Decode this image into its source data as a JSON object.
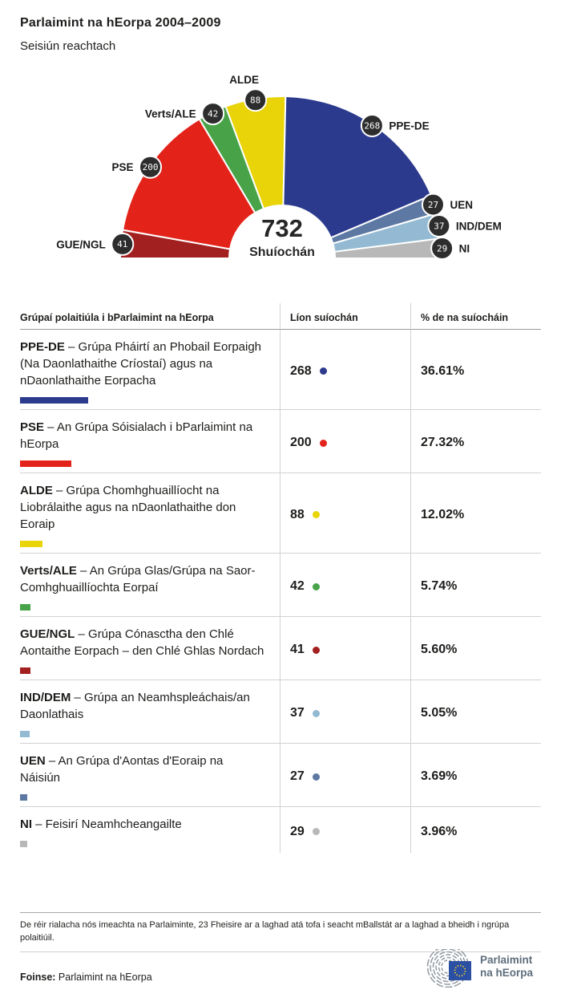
{
  "header": {
    "title": "Parlaimint na hEorpa 2004–2009",
    "subtitle": "Seisiún reachtach"
  },
  "chart_data": {
    "type": "hemicycle",
    "title": "Parlaimint na hEorpa 2004–2009",
    "subtitle": "Seisiún reachtach",
    "center_total": "732",
    "center_label": "Shuíochán",
    "total_seats": 732,
    "note": "semicircle spans 180 degrees, groups listed left to right",
    "groups": [
      {
        "name": "GUE/NGL",
        "seats": 41,
        "color": "#a32020"
      },
      {
        "name": "PSE",
        "seats": 200,
        "color": "#e3231a"
      },
      {
        "name": "Verts/ALE",
        "seats": 42,
        "color": "#48a348"
      },
      {
        "name": "ALDE",
        "seats": 88,
        "color": "#e8d408"
      },
      {
        "name": "PPE-DE",
        "seats": 268,
        "color": "#2b3a8c"
      },
      {
        "name": "UEN",
        "seats": 27,
        "color": "#5d79a3"
      },
      {
        "name": "IND/DEM",
        "seats": 37,
        "color": "#93bad2"
      },
      {
        "name": "NI",
        "seats": 29,
        "color": "#b8b8b8"
      }
    ],
    "badge_color": "#2d2d2d",
    "badge_text_color": "#ffffff"
  },
  "table": {
    "headers": [
      "Grúpaí polaitiúla i bParlaimint na hEorpa",
      "Líon suíochán",
      "% de na suíocháin"
    ],
    "rows": [
      {
        "code": "PPE-DE",
        "desc": " – Grúpa Pháirtí an Phobail Eorpaigh (Na Daonlathaithe Críostaí) agus na nDaonlathaithe Eorpacha",
        "seats": "268",
        "pct": "36.61%",
        "color": "#2b3a8c"
      },
      {
        "code": "PSE",
        "desc": " – An Grúpa Sóisialach i bParlaimint na hEorpa",
        "seats": "200",
        "pct": "27.32%",
        "color": "#e3231a"
      },
      {
        "code": "ALDE",
        "desc": " – Grúpa Chomhghuaillíocht na Liobrálaithe agus na nDaonlathaithe don Eoraip",
        "seats": "88",
        "pct": "12.02%",
        "color": "#e8d408"
      },
      {
        "code": "Verts/ALE",
        "desc": " – An Grúpa Glas/Grúpa na Saor-Comhghuaillíochta Eorpaí",
        "seats": "42",
        "pct": "5.74%",
        "color": "#48a348"
      },
      {
        "code": "GUE/NGL",
        "desc": " – Grúpa Cónasctha den Chlé Aontaithe Eorpach – den Chlé Ghlas Nordach",
        "seats": "41",
        "pct": "5.60%",
        "color": "#a32020"
      },
      {
        "code": "IND/DEM",
        "desc": " – Grúpa an Neamhspleáchais/an Daonlathais",
        "seats": "37",
        "pct": "5.05%",
        "color": "#93bad2"
      },
      {
        "code": "UEN",
        "desc": " – An Grúpa d'Aontas d'Eoraip na Náisiún",
        "seats": "27",
        "pct": "3.69%",
        "color": "#5d79a3"
      },
      {
        "code": "NI",
        "desc": " – Feisirí Neamhcheangailte",
        "seats": "29",
        "pct": "3.96%",
        "color": "#b8b8b8"
      }
    ]
  },
  "footnote": "De réir rialacha nós imeachta na Parlaiminte, 23 Fheisire ar a laghad atá tofa i seacht mBallstát ar a laghad a bheidh i ngrúpa polaitiúil.",
  "source": {
    "label": "Foinse:",
    "text": " Parlaimint na hEorpa"
  },
  "logo": {
    "line1": "Parlaimint",
    "line2": "na hEorpa",
    "flag_color": "#2b4fa2",
    "star_color": "#f8d12a",
    "arc_color": "#939aa1"
  }
}
